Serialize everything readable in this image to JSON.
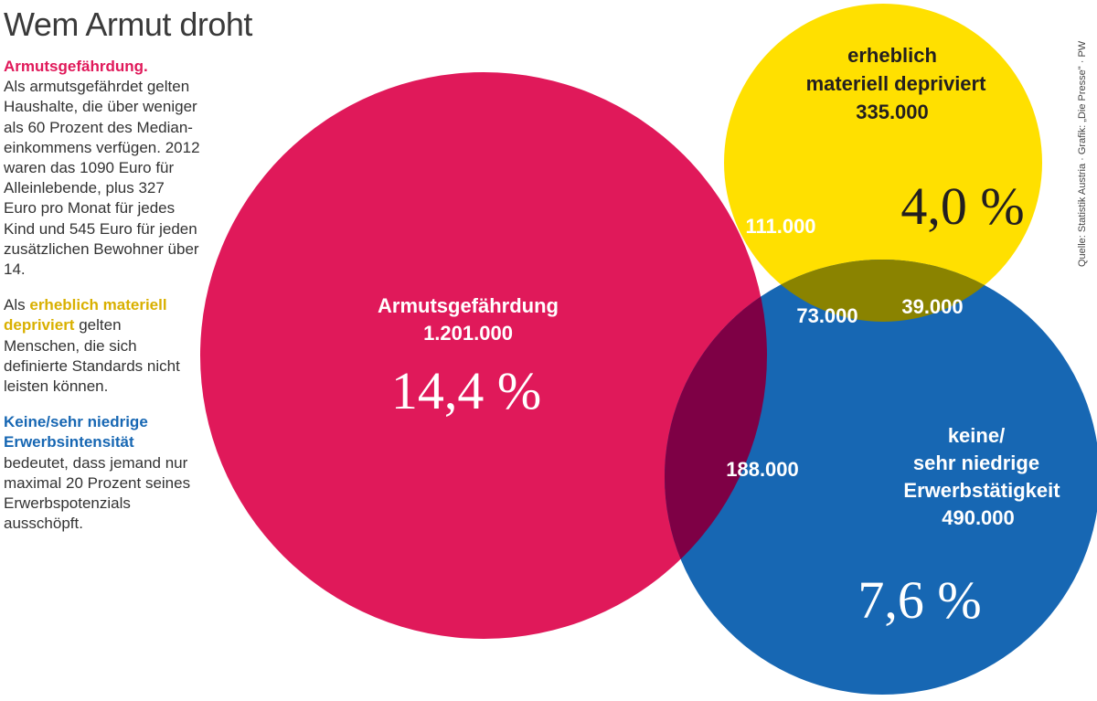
{
  "title": "Wem Armut droht",
  "source": "Quelle: Statistik Austria · Grafik: „Die Presse\" · PW",
  "sidebar": {
    "def1_heading": "Armutsgefährdung.",
    "def1_text": "Als armutsgefährdet gelten Haushalte, die über weniger als 60 Prozent des Median-einkommens verfügen. 2012 waren das 1090 Euro für Alleinlebende, plus 327 Euro pro Monat für jedes Kind und 545 Euro für jeden zusätzlichen Bewohner über 14.",
    "def2_prefix": "Als",
    "def2_heading": "erheblich materiell depriviert",
    "def2_text": "gelten Menschen, die sich definierte Standards nicht leisten können.",
    "def3_heading": "Keine/sehr niedrige Erwerbsintensität",
    "def3_text": "bedeutet, dass jemand nur maximal 20 Prozent seines Erwerbspotenzials ausschöpft."
  },
  "colors": {
    "poverty": "#e0195a",
    "deprivation": "#ffe000",
    "employment": "#1767b3",
    "poverty_deprivation": "#f5a21e",
    "poverty_employment": "#7e0045",
    "deprivation_employment": "#8a8300",
    "all_three": "#231f20"
  },
  "venn": {
    "poverty": {
      "line1": "Armutsgefährdung",
      "count": "1.201.000",
      "percent": "14,4 %"
    },
    "deprivation": {
      "line1": "erheblich",
      "line2": "materiell depriviert",
      "count": "335.000",
      "percent": "4,0 %"
    },
    "employment": {
      "line1": "keine/",
      "line2": "sehr niedrige",
      "line3": "Erwerbstätigkeit",
      "count": "490.000",
      "percent": "7,6 %"
    },
    "poverty_deprivation": "111.000",
    "poverty_employment": "188.000",
    "deprivation_employment": "39.000",
    "all_three": "73.000"
  }
}
